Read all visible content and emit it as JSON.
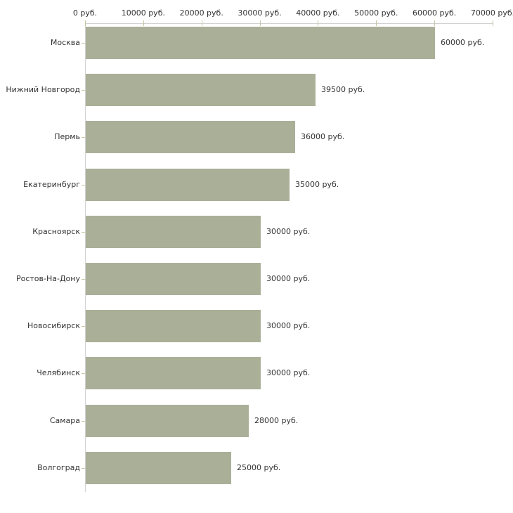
{
  "chart_data": {
    "type": "bar",
    "orientation": "horizontal",
    "title": "",
    "categories": [
      "Москва",
      "Нижний Новгород",
      "Пермь",
      "Екатеринбург",
      "Красноярск",
      "Ростов-На-Дону",
      "Новосибирск",
      "Челябинск",
      "Самара",
      "Волгоград"
    ],
    "values": [
      60000,
      39500,
      36000,
      35000,
      30000,
      30000,
      30000,
      30000,
      28000,
      25000
    ],
    "value_labels": [
      "60000 руб.",
      "39500 руб.",
      "36000 руб.",
      "35000 руб.",
      "30000 руб.",
      "30000 руб.",
      "30000 руб.",
      "30000 руб.",
      "28000 руб.",
      "25000 руб."
    ],
    "unit": "руб.",
    "x_axis": {
      "position": "top",
      "min": 0,
      "max": 70000,
      "tick_values": [
        0,
        10000,
        20000,
        30000,
        40000,
        50000,
        60000,
        70000
      ],
      "tick_labels": [
        "0 руб.",
        "10000 руб.",
        "20000 руб.",
        "30000 руб.",
        "40000 руб.",
        "50000 руб.",
        "60000 руб.",
        "70000 руб."
      ]
    },
    "grid": false,
    "legend": false,
    "colors": {
      "bar": "#aab098",
      "axis_line": "#d2d2d2",
      "tick_mark": "#c9c5a3",
      "text": "#333333",
      "background": "#ffffff"
    }
  }
}
